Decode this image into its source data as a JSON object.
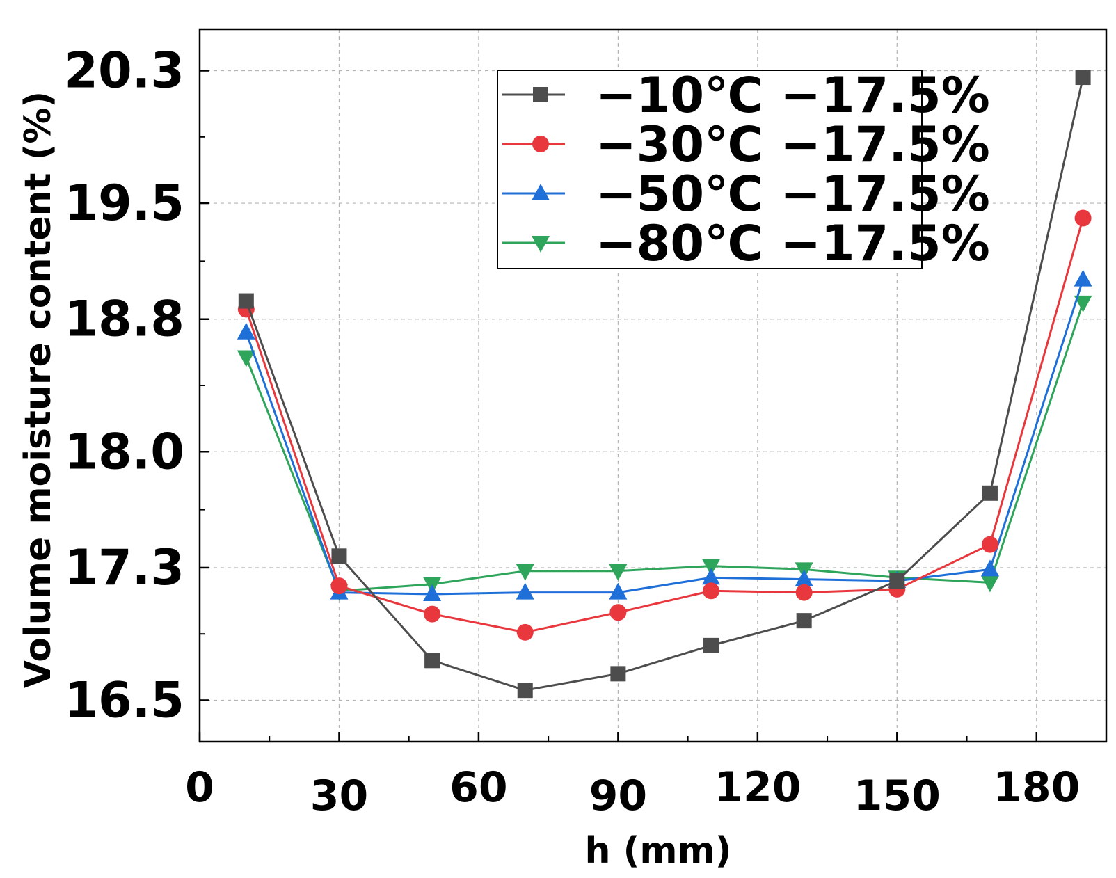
{
  "chart_data": {
    "type": "line",
    "title": "",
    "xlabel": "h (mm)",
    "ylabel": "Volume moisture content (%)",
    "xlim": [
      0,
      195
    ],
    "ylim": [
      16.25,
      20.55
    ],
    "x_ticks": [
      0,
      30,
      60,
      90,
      120,
      150,
      180
    ],
    "y_ticks": [
      16.5,
      17.3,
      18.0,
      18.8,
      19.5,
      20.3
    ],
    "y_tick_labels": [
      "16.5",
      "17.3",
      "18.0",
      "18.8",
      "19.5",
      "20.3"
    ],
    "x": [
      10,
      30,
      50,
      70,
      90,
      110,
      130,
      150,
      170,
      190
    ],
    "grid": true,
    "legend_position": "top-center",
    "series": [
      {
        "name": "−10℃ −17.5%",
        "color": "#4d4d4d",
        "marker": "square",
        "values": [
          18.91,
          17.37,
          16.74,
          16.56,
          16.66,
          16.83,
          16.98,
          17.22,
          17.75,
          20.26
        ]
      },
      {
        "name": "−30℃ −17.5%",
        "color": "#e8383d",
        "marker": "circle",
        "values": [
          18.86,
          17.19,
          17.02,
          16.91,
          17.03,
          17.16,
          17.15,
          17.17,
          17.44,
          19.41
        ]
      },
      {
        "name": "−50℃ −17.5%",
        "color": "#1f6fd8",
        "marker": "triangle-up",
        "values": [
          18.72,
          17.15,
          17.14,
          17.15,
          17.15,
          17.24,
          17.23,
          17.22,
          17.29,
          19.04
        ]
      },
      {
        "name": "−80℃ −17.5%",
        "color": "#2ea55a",
        "marker": "triangle-down",
        "values": [
          18.57,
          17.16,
          17.2,
          17.28,
          17.28,
          17.31,
          17.29,
          17.24,
          17.21,
          18.9
        ]
      }
    ]
  }
}
